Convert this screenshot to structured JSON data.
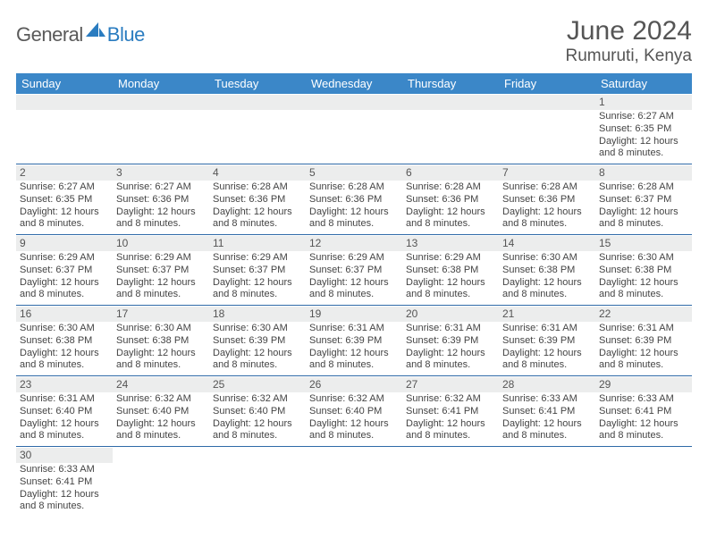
{
  "brand": {
    "part1": "General",
    "part2": "Blue",
    "accent": "#2a7cc0",
    "gray": "#5a5a5a"
  },
  "title": "June 2024",
  "location": "Rumuruti, Kenya",
  "styling": {
    "header_bg": "#3b87c8",
    "header_text": "#ffffff",
    "daybar_bg": "#eceded",
    "cell_text": "#444444",
    "week_divider": "#2f6aa8",
    "page_bg": "#ffffff",
    "title_color": "#555555",
    "weekday_fontsize": 13,
    "daynum_fontsize": 12,
    "detail_fontsize": 11,
    "title_fontsize": 30,
    "location_fontsize": 19
  },
  "weekdays": [
    "Sunday",
    "Monday",
    "Tuesday",
    "Wednesday",
    "Thursday",
    "Friday",
    "Saturday"
  ],
  "weeks": [
    [
      null,
      null,
      null,
      null,
      null,
      null,
      {
        "n": "1",
        "sr": "Sunrise: 6:27 AM",
        "ss": "Sunset: 6:35 PM",
        "dl": "Daylight: 12 hours and 8 minutes."
      }
    ],
    [
      {
        "n": "2",
        "sr": "Sunrise: 6:27 AM",
        "ss": "Sunset: 6:35 PM",
        "dl": "Daylight: 12 hours and 8 minutes."
      },
      {
        "n": "3",
        "sr": "Sunrise: 6:27 AM",
        "ss": "Sunset: 6:36 PM",
        "dl": "Daylight: 12 hours and 8 minutes."
      },
      {
        "n": "4",
        "sr": "Sunrise: 6:28 AM",
        "ss": "Sunset: 6:36 PM",
        "dl": "Daylight: 12 hours and 8 minutes."
      },
      {
        "n": "5",
        "sr": "Sunrise: 6:28 AM",
        "ss": "Sunset: 6:36 PM",
        "dl": "Daylight: 12 hours and 8 minutes."
      },
      {
        "n": "6",
        "sr": "Sunrise: 6:28 AM",
        "ss": "Sunset: 6:36 PM",
        "dl": "Daylight: 12 hours and 8 minutes."
      },
      {
        "n": "7",
        "sr": "Sunrise: 6:28 AM",
        "ss": "Sunset: 6:36 PM",
        "dl": "Daylight: 12 hours and 8 minutes."
      },
      {
        "n": "8",
        "sr": "Sunrise: 6:28 AM",
        "ss": "Sunset: 6:37 PM",
        "dl": "Daylight: 12 hours and 8 minutes."
      }
    ],
    [
      {
        "n": "9",
        "sr": "Sunrise: 6:29 AM",
        "ss": "Sunset: 6:37 PM",
        "dl": "Daylight: 12 hours and 8 minutes."
      },
      {
        "n": "10",
        "sr": "Sunrise: 6:29 AM",
        "ss": "Sunset: 6:37 PM",
        "dl": "Daylight: 12 hours and 8 minutes."
      },
      {
        "n": "11",
        "sr": "Sunrise: 6:29 AM",
        "ss": "Sunset: 6:37 PM",
        "dl": "Daylight: 12 hours and 8 minutes."
      },
      {
        "n": "12",
        "sr": "Sunrise: 6:29 AM",
        "ss": "Sunset: 6:37 PM",
        "dl": "Daylight: 12 hours and 8 minutes."
      },
      {
        "n": "13",
        "sr": "Sunrise: 6:29 AM",
        "ss": "Sunset: 6:38 PM",
        "dl": "Daylight: 12 hours and 8 minutes."
      },
      {
        "n": "14",
        "sr": "Sunrise: 6:30 AM",
        "ss": "Sunset: 6:38 PM",
        "dl": "Daylight: 12 hours and 8 minutes."
      },
      {
        "n": "15",
        "sr": "Sunrise: 6:30 AM",
        "ss": "Sunset: 6:38 PM",
        "dl": "Daylight: 12 hours and 8 minutes."
      }
    ],
    [
      {
        "n": "16",
        "sr": "Sunrise: 6:30 AM",
        "ss": "Sunset: 6:38 PM",
        "dl": "Daylight: 12 hours and 8 minutes."
      },
      {
        "n": "17",
        "sr": "Sunrise: 6:30 AM",
        "ss": "Sunset: 6:38 PM",
        "dl": "Daylight: 12 hours and 8 minutes."
      },
      {
        "n": "18",
        "sr": "Sunrise: 6:30 AM",
        "ss": "Sunset: 6:39 PM",
        "dl": "Daylight: 12 hours and 8 minutes."
      },
      {
        "n": "19",
        "sr": "Sunrise: 6:31 AM",
        "ss": "Sunset: 6:39 PM",
        "dl": "Daylight: 12 hours and 8 minutes."
      },
      {
        "n": "20",
        "sr": "Sunrise: 6:31 AM",
        "ss": "Sunset: 6:39 PM",
        "dl": "Daylight: 12 hours and 8 minutes."
      },
      {
        "n": "21",
        "sr": "Sunrise: 6:31 AM",
        "ss": "Sunset: 6:39 PM",
        "dl": "Daylight: 12 hours and 8 minutes."
      },
      {
        "n": "22",
        "sr": "Sunrise: 6:31 AM",
        "ss": "Sunset: 6:39 PM",
        "dl": "Daylight: 12 hours and 8 minutes."
      }
    ],
    [
      {
        "n": "23",
        "sr": "Sunrise: 6:31 AM",
        "ss": "Sunset: 6:40 PM",
        "dl": "Daylight: 12 hours and 8 minutes."
      },
      {
        "n": "24",
        "sr": "Sunrise: 6:32 AM",
        "ss": "Sunset: 6:40 PM",
        "dl": "Daylight: 12 hours and 8 minutes."
      },
      {
        "n": "25",
        "sr": "Sunrise: 6:32 AM",
        "ss": "Sunset: 6:40 PM",
        "dl": "Daylight: 12 hours and 8 minutes."
      },
      {
        "n": "26",
        "sr": "Sunrise: 6:32 AM",
        "ss": "Sunset: 6:40 PM",
        "dl": "Daylight: 12 hours and 8 minutes."
      },
      {
        "n": "27",
        "sr": "Sunrise: 6:32 AM",
        "ss": "Sunset: 6:41 PM",
        "dl": "Daylight: 12 hours and 8 minutes."
      },
      {
        "n": "28",
        "sr": "Sunrise: 6:33 AM",
        "ss": "Sunset: 6:41 PM",
        "dl": "Daylight: 12 hours and 8 minutes."
      },
      {
        "n": "29",
        "sr": "Sunrise: 6:33 AM",
        "ss": "Sunset: 6:41 PM",
        "dl": "Daylight: 12 hours and 8 minutes."
      }
    ],
    [
      {
        "n": "30",
        "sr": "Sunrise: 6:33 AM",
        "ss": "Sunset: 6:41 PM",
        "dl": "Daylight: 12 hours and 8 minutes."
      },
      null,
      null,
      null,
      null,
      null,
      null
    ]
  ]
}
